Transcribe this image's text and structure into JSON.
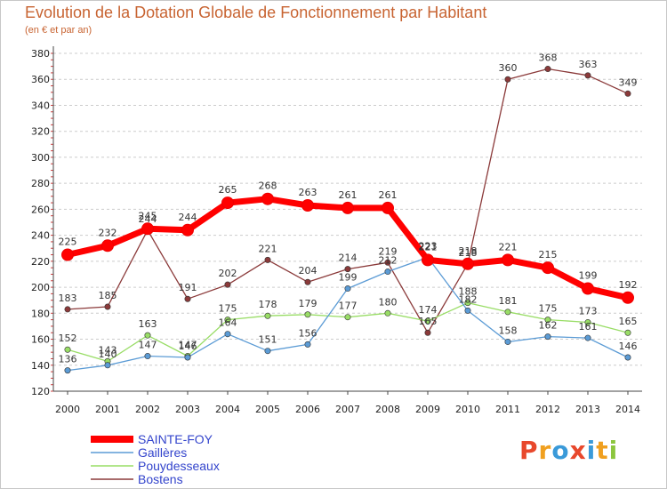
{
  "chart_data": {
    "type": "line",
    "title": "Evolution de la Dotation Globale de Fonctionnement par Habitant",
    "subtitle": "(en € et par an)",
    "x": [
      "2000",
      "2001",
      "2002",
      "2003",
      "2004",
      "2005",
      "2006",
      "2007",
      "2008",
      "2009",
      "2010",
      "2011",
      "2012",
      "2013",
      "2014"
    ],
    "yticks": [
      120,
      140,
      160,
      180,
      200,
      220,
      240,
      260,
      280,
      300,
      320,
      340,
      360,
      380
    ],
    "ylim": [
      120,
      380
    ],
    "grid": "horizontal-dashed",
    "legend_position": "bottom-left",
    "series": [
      {
        "name": "SAINTE-FOY",
        "color": "#ff0000",
        "values": [
          225,
          232,
          245,
          244,
          265,
          268,
          263,
          261,
          261,
          221,
          218,
          221,
          215,
          199,
          192
        ]
      },
      {
        "name": "Gaillères",
        "color": "#5b9bd5",
        "values": [
          136,
          140,
          147,
          146,
          164,
          151,
          156,
          199,
          212,
          223,
          182,
          158,
          162,
          161,
          146
        ]
      },
      {
        "name": "Pouydesseaux",
        "color": "#99dd66",
        "values": [
          152,
          143,
          163,
          147,
          175,
          178,
          179,
          177,
          180,
          174,
          188,
          181,
          175,
          173,
          165
        ]
      },
      {
        "name": "Bostens",
        "color": "#8b3a3a",
        "values": [
          183,
          185,
          244,
          191,
          202,
          221,
          204,
          214,
          219,
          165,
          218,
          360,
          368,
          363,
          349
        ]
      }
    ]
  },
  "logo": {
    "text": "Proxiti"
  }
}
